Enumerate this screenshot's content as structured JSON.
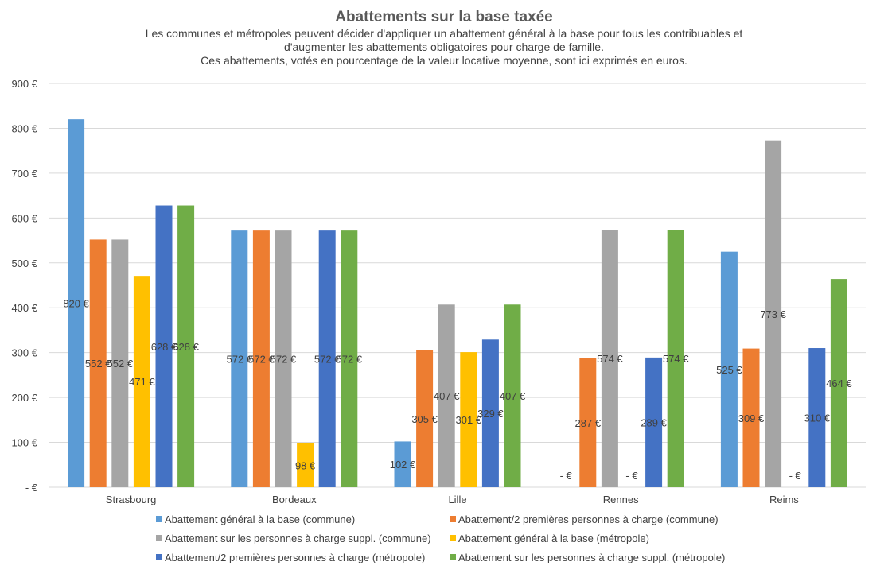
{
  "chart_data": {
    "type": "bar",
    "title": "Abattements sur la base taxée",
    "subtitle": [
      "Les communes et métropoles peuvent décider d'appliquer un abattement général à la base pour tous les contribuables et",
      "d'augmenter les abattements obligatoires pour charge de famille.",
      "Ces abattements, votés en pourcentage de la valeur locative moyenne, sont ici exprimés en euros."
    ],
    "categories": [
      "Strasbourg",
      "Bordeaux",
      "Lille",
      "Rennes",
      "Reims"
    ],
    "ylim": [
      0,
      900
    ],
    "yticks": [
      0,
      100,
      200,
      300,
      400,
      500,
      600,
      700,
      800,
      900
    ],
    "ytick_labels": [
      "-  €",
      "100 €",
      "200 €",
      "300 €",
      "400 €",
      "500 €",
      "600 €",
      "700 €",
      "800 €",
      "900 €"
    ],
    "gridlines": true,
    "legend_position": "bottom",
    "series": [
      {
        "name": "Abattement général à la base (commune)",
        "color": "#5b9bd5",
        "values": [
          820,
          572,
          102,
          0,
          525
        ],
        "labels": [
          "820 €",
          "572 €",
          "102 €",
          "-  €",
          "525 €"
        ]
      },
      {
        "name": "Abattement/2 premières personnes à charge (commune)",
        "color": "#ed7d31",
        "values": [
          552,
          572,
          305,
          287,
          309
        ],
        "labels": [
          "552 €",
          "572 €",
          "305 €",
          "287 €",
          "309 €"
        ]
      },
      {
        "name": "Abattement sur les personnes à charge suppl. (commune)",
        "color": "#a5a5a5",
        "values": [
          552,
          572,
          407,
          574,
          773
        ],
        "labels": [
          "552 €",
          "572 €",
          "407 €",
          "574 €",
          "773 €"
        ]
      },
      {
        "name": "Abattement général à la base (métropole)",
        "color": "#ffc000",
        "values": [
          471,
          98,
          301,
          0,
          0
        ],
        "labels": [
          "471 €",
          "98 €",
          "301 €",
          "-  €",
          "-  €"
        ]
      },
      {
        "name": "Abattement/2 premières personnes à charge (métropole)",
        "color": "#4472c4",
        "values": [
          628,
          572,
          329,
          289,
          310
        ],
        "labels": [
          "628 €",
          "572 €",
          "329 €",
          "289 €",
          "310 €"
        ]
      },
      {
        "name": "Abattement sur les personnes à charge suppl. (métropole)",
        "color": "#70ad47",
        "values": [
          628,
          572,
          407,
          574,
          464
        ],
        "labels": [
          "628 €",
          "572 €",
          "407 €",
          "574 €",
          "464 €"
        ]
      }
    ]
  }
}
